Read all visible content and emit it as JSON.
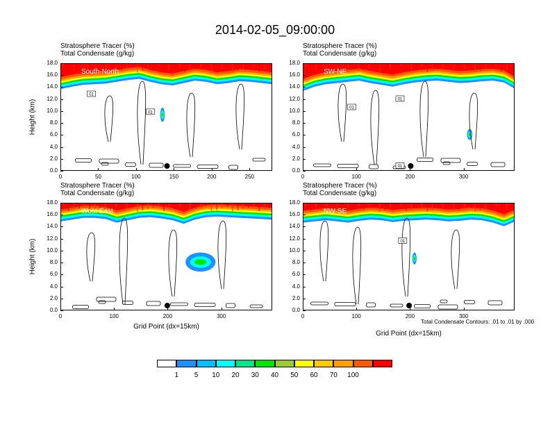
{
  "title": "2014-02-05_09:00:00",
  "footnote": "Total Condensate Contours: .01 to .01 by .000",
  "colors": {
    "bins": [
      "#ffffff",
      "#1e90ff",
      "#00bfff",
      "#00ffff",
      "#00e58c",
      "#00e600",
      "#9acd32",
      "#ffff00",
      "#ffcc00",
      "#ffa000",
      "#ff5a00",
      "#ff0000"
    ],
    "contour": "#000000",
    "marker": "#000000"
  },
  "colorbar": {
    "labels": [
      "1",
      "5",
      "10",
      "20",
      "30",
      "40",
      "50",
      "60",
      "70",
      "100"
    ]
  },
  "chart_data": [
    {
      "type": "heatmap",
      "region": "South-North",
      "subtitle_1": "Stratosphere Tracer   (%)",
      "subtitle_2": "Total Condensate   (g/kg)",
      "ylabel": "Height (km)",
      "xlabel": "",
      "x_ticks": [
        "0",
        "50",
        "100",
        "150",
        "200",
        "250"
      ],
      "x_range": [
        0,
        280
      ],
      "y_ticks": [
        "0.0",
        "2.0",
        "4.0",
        "6.0",
        "8.0",
        "10.0",
        "12.0",
        "14.0",
        "16.0",
        "18.0"
      ],
      "y_range": [
        0,
        18
      ],
      "tracer_bottom_km": [
        13.8,
        14.2,
        14.5,
        14.6,
        14.7,
        15.0,
        15.3,
        15.5,
        15.0,
        14.6,
        14.4,
        14.8,
        15.2,
        15.0,
        14.6,
        14.8,
        15.1,
        15.0,
        14.8,
        14.6
      ],
      "tracer_blobs": [
        {
          "x": 134,
          "y": 9.5,
          "rx": 3,
          "ry": 1.2
        }
      ],
      "contour_labels": [
        {
          "text": "01",
          "x": 40,
          "y": 13.0
        },
        {
          "text": "01",
          "x": 118,
          "y": 10.0
        }
      ],
      "marker_x": 140
    },
    {
      "type": "heatmap",
      "region": "SW-NE",
      "subtitle_1": "Stratosphere Tracer   (%)",
      "subtitle_2": "Total Condensate   (g/kg)",
      "ylabel": "",
      "xlabel": "",
      "x_ticks": [
        "0",
        "100",
        "200",
        "300"
      ],
      "x_range": [
        0,
        395
      ],
      "y_ticks": [
        "0.0",
        "2.0",
        "4.0",
        "6.0",
        "8.0",
        "10.0",
        "12.0",
        "14.0",
        "16.0",
        "18.0"
      ],
      "y_range": [
        0,
        18
      ],
      "tracer_bottom_km": [
        13.5,
        14.2,
        14.6,
        14.8,
        15.0,
        15.2,
        14.8,
        14.5,
        14.2,
        14.6,
        14.9,
        15.1,
        15.2,
        15.0,
        14.8,
        14.9,
        15.1,
        15.2,
        14.9,
        13.8
      ],
      "tracer_blobs": [
        {
          "x": 310,
          "y": 6.2,
          "rx": 5,
          "ry": 0.9
        }
      ],
      "contour_labels": [
        {
          "text": "01",
          "x": 90,
          "y": 10.8
        },
        {
          "text": "01",
          "x": 180,
          "y": 12.2
        },
        {
          "text": "01",
          "x": 180,
          "y": 1.0
        }
      ],
      "marker_x": 200
    },
    {
      "type": "heatmap",
      "region": "West-East",
      "subtitle_1": "Stratosphere Tracer   (%)",
      "subtitle_2": "Total Condensate   (g/kg)",
      "ylabel": "Height (km)",
      "xlabel": "Grid Point (dx=15km)",
      "x_ticks": [
        "0",
        "100",
        "200",
        "300"
      ],
      "x_range": [
        0,
        395
      ],
      "y_ticks": [
        "0.0",
        "2.0",
        "4.0",
        "6.0",
        "8.0",
        "10.0",
        "12.0",
        "14.0",
        "16.0",
        "18.0"
      ],
      "y_range": [
        0,
        18
      ],
      "tracer_bottom_km": [
        15.0,
        15.3,
        15.6,
        15.6,
        15.4,
        14.8,
        15.2,
        15.6,
        15.7,
        15.5,
        15.2,
        14.6,
        15.3,
        15.7,
        15.8,
        15.7,
        15.6,
        15.5,
        15.4,
        15.3
      ],
      "tracer_blobs": [
        {
          "x": 260,
          "y": 8.2,
          "rx": 28,
          "ry": 1.6
        }
      ],
      "contour_labels": [],
      "marker_x": 198
    },
    {
      "type": "heatmap",
      "region": "NW-SE",
      "subtitle_1": "Stratosphere Tracer   (%)",
      "subtitle_2": "Total Condensate   (g/kg)",
      "ylabel": "",
      "xlabel": "Grid Point (dx=15km)",
      "x_ticks": [
        "0",
        "100",
        "200",
        "300"
      ],
      "x_range": [
        0,
        395
      ],
      "y_ticks": [
        "0.0",
        "2.0",
        "4.0",
        "6.0",
        "8.0",
        "10.0",
        "12.0",
        "14.0",
        "16.0",
        "18.0"
      ],
      "y_range": [
        0,
        18
      ],
      "tracer_bottom_km": [
        14.8,
        15.0,
        15.2,
        15.0,
        14.8,
        15.1,
        15.3,
        15.2,
        14.9,
        15.1,
        15.2,
        15.3,
        15.2,
        15.0,
        15.1,
        15.3,
        15.2,
        14.8,
        14.2,
        15.0
      ],
      "tracer_blobs": [
        {
          "x": 207,
          "y": 8.8,
          "rx": 4,
          "ry": 1.0
        }
      ],
      "contour_labels": [
        {
          "text": "01",
          "x": 185,
          "y": 11.8
        }
      ],
      "marker_x": 197
    }
  ]
}
